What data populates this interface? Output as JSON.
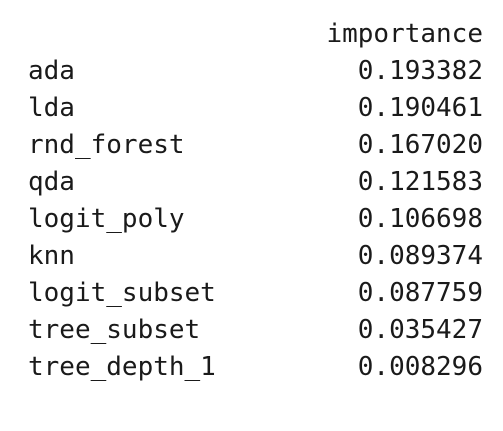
{
  "dataframe": {
    "columns": [
      "importance"
    ],
    "rows": [
      {
        "index": "ada",
        "importance": "0.193382"
      },
      {
        "index": "lda",
        "importance": "0.190461"
      },
      {
        "index": "rnd_forest",
        "importance": "0.167020"
      },
      {
        "index": "qda",
        "importance": "0.121583"
      },
      {
        "index": "logit_poly",
        "importance": "0.106698"
      },
      {
        "index": "knn",
        "importance": "0.089374"
      },
      {
        "index": "logit_subset",
        "importance": "0.087759"
      },
      {
        "index": "tree_subset",
        "importance": "0.035427"
      },
      {
        "index": "tree_depth_1",
        "importance": "0.008296"
      }
    ]
  }
}
